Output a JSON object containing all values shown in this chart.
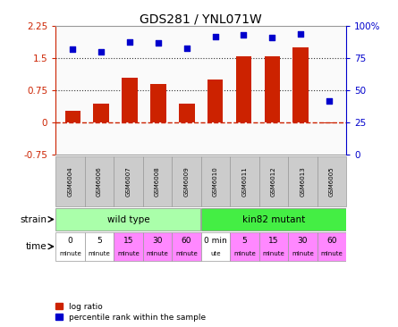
{
  "title": "GDS281 / YNL071W",
  "samples": [
    "GSM6004",
    "GSM6006",
    "GSM6007",
    "GSM6008",
    "GSM6009",
    "GSM6010",
    "GSM6011",
    "GSM6012",
    "GSM6013",
    "GSM6005"
  ],
  "log_ratio": [
    0.28,
    0.45,
    1.05,
    0.9,
    0.45,
    1.0,
    1.55,
    1.55,
    1.75,
    -0.02
  ],
  "percentile": [
    82,
    80,
    88,
    87,
    83,
    92,
    93,
    91,
    94,
    42
  ],
  "ylim_left": [
    -0.75,
    2.25
  ],
  "ylim_right": [
    0,
    100
  ],
  "yticks_left": [
    -0.75,
    0,
    0.75,
    1.5,
    2.25
  ],
  "yticks_right": [
    0,
    25,
    50,
    75,
    100
  ],
  "bar_color": "#CC2200",
  "dot_color": "#0000CC",
  "zero_line_color": "#CC2200",
  "dotted_line_color": "#333333",
  "strain_wt_color": "#AAFFAA",
  "strain_mut_color": "#44EE44",
  "time_wt_colors": [
    "#FFFFFF",
    "#FFFFFF",
    "#FF88FF",
    "#FF88FF",
    "#FF88FF"
  ],
  "time_mut_colors": [
    "#FFFFFF",
    "#FF88FF",
    "#FF88FF",
    "#FF88FF",
    "#FF88FF"
  ],
  "time_labels_wt": [
    [
      "0",
      "minute"
    ],
    [
      "5",
      "minute"
    ],
    [
      "15",
      "minute"
    ],
    [
      "30",
      "minute"
    ],
    [
      "60",
      "minute"
    ]
  ],
  "time_labels_mut": [
    [
      "0 min",
      "ute"
    ],
    [
      "5",
      "minute"
    ],
    [
      "15",
      "minute"
    ],
    [
      "30",
      "minute"
    ],
    [
      "60",
      "minute"
    ]
  ],
  "tick_color_left": "#CC2200",
  "tick_color_right": "#0000CC",
  "bar_width": 0.55,
  "bg_color": "#FFFFFF"
}
